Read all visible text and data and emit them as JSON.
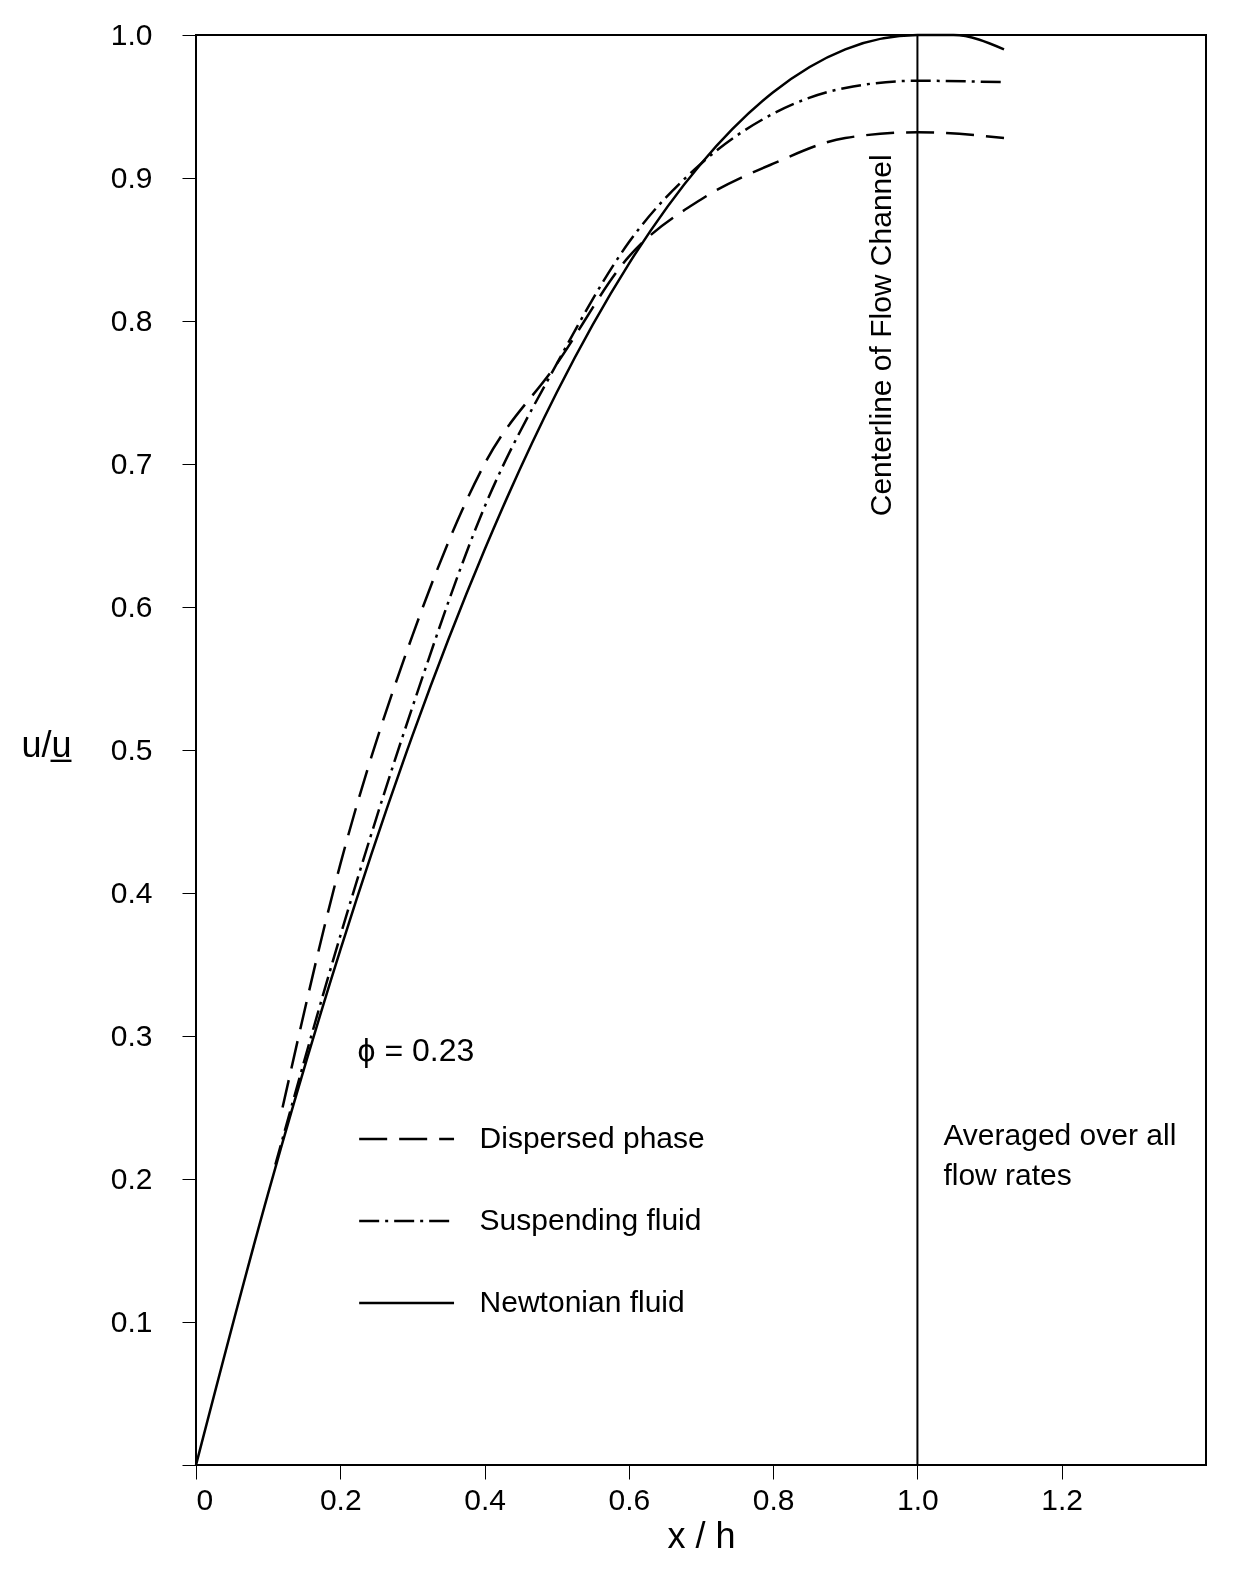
{
  "chart_data": {
    "type": "line",
    "xlabel": "x / h",
    "ylabel": "u/u̲",
    "legend_title": "ϕ = 0.23",
    "xlim": [
      0,
      1.4
    ],
    "ylim": [
      0,
      1.0
    ],
    "xticks": [
      0,
      0.2,
      0.4,
      0.6,
      0.8,
      {
        "value": 1.0,
        "label": "1.0"
      },
      1.2
    ],
    "yticks": [
      {
        "value": 0,
        "label": null
      },
      0.1,
      0.2,
      0.3,
      0.4,
      0.5,
      0.6,
      0.7,
      0.8,
      0.9,
      {
        "value": 1.0,
        "label": "1.0"
      }
    ],
    "grid": false,
    "legend": "bottom",
    "marker": "none",
    "ref_lines": [
      {
        "axis": "x",
        "value": 1.0,
        "label": "Centerline of Flow Channel",
        "color": "#000000",
        "line_style": "solid"
      }
    ],
    "annotations": [
      "Averaged over all flow rates"
    ],
    "series": [
      {
        "name": "Dispersed phase",
        "color": "#000000",
        "line_style": "dashed",
        "x": [
          0.12,
          0.2,
          0.3,
          0.4,
          0.5,
          0.6,
          0.7,
          0.8,
          0.9,
          1.0,
          1.12
        ],
        "values": [
          0.25,
          0.42,
          0.58,
          0.7,
          0.77,
          0.845,
          0.885,
          0.91,
          0.928,
          0.932,
          0.928
        ]
      },
      {
        "name": "Suspending fluid",
        "color": "#000000",
        "line_style": "dotted",
        "x": [
          0.11,
          0.2,
          0.3,
          0.4,
          0.5,
          0.6,
          0.7,
          0.8,
          0.9,
          1.0,
          1.12
        ],
        "values": [
          0.21,
          0.37,
          0.53,
          0.67,
          0.77,
          0.855,
          0.91,
          0.945,
          0.963,
          0.968,
          0.967
        ]
      },
      {
        "name": "Newtonian fluid",
        "color": "#000000",
        "line_style": "solid",
        "x": [
          0,
          0.1,
          0.2,
          0.3,
          0.4,
          0.5,
          0.6,
          0.7,
          0.8,
          0.9,
          1.0,
          1.05,
          1.12
        ],
        "values": [
          0,
          0.19,
          0.36,
          0.51,
          0.64,
          0.75,
          0.84,
          0.91,
          0.96,
          0.99,
          1.0,
          1.0,
          0.99
        ]
      }
    ]
  }
}
